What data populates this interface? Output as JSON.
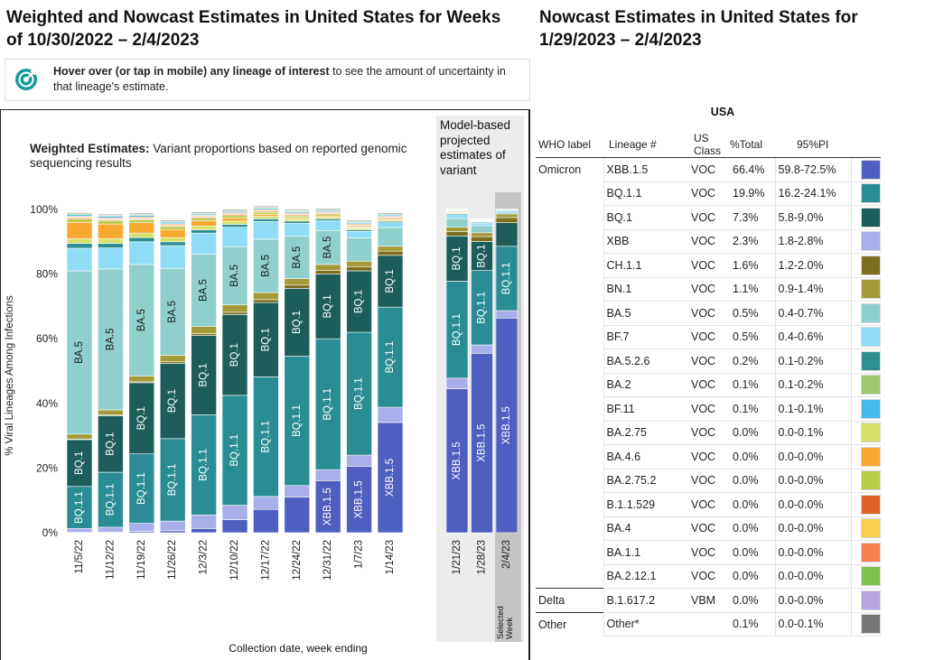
{
  "left_title": "Weighted and Nowcast Estimates in United States for Weeks of 10/30/2022 – 2/4/2023",
  "hint": {
    "bold": "Hover over (or tap in mobile) any lineage of interest",
    "rest": " to see the amount of uncertainty in that lineage's estimate."
  },
  "weighted": {
    "title_bold": "Weighted Estimates:",
    "title_rest": " Variant proportions based on reported genomic sequencing results"
  },
  "projected_title": "Model-based projected estimates of variant",
  "selected_week_label": "Selected Week",
  "colors": {
    "XBB.1.5": "#4f5fbf",
    "XBB": "#a8aee8",
    "BQ.1.1": "#2a8d96",
    "BQ.1": "#1d5e5a",
    "CH.1.1": "#7a6f1f",
    "BN.1": "#a39a39",
    "BA.5": "#8fd0cc",
    "BF.7": "#8fdcf7",
    "BA.5.2.6": "#2d8f92",
    "BA.2": "#9bc96b",
    "BF.11": "#45b8ee",
    "BA.2.75": "#d6e06a",
    "BA.4.6": "#f8a830",
    "BA.2.75.2": "#b8cc4a",
    "B.1.1.529": "#e0622a",
    "BA.4": "#f7d050",
    "BA.1.1": "#f87e50",
    "BA.2.12.1": "#7fbf4b",
    "B.1.617.2": "#b7a4e0",
    "Other": "#777777"
  },
  "chart_data": {
    "type": "bar",
    "stacked": true,
    "title": "Weighted Estimates",
    "xlabel": "Collection date, week ending",
    "ylabel": "% Viral Lineages Among Infections",
    "ylim": [
      0,
      100
    ],
    "yticks": [
      "0%",
      "20%",
      "40%",
      "60%",
      "80%",
      "100%"
    ],
    "categories": [
      "11/5/22",
      "11/12/22",
      "11/19/22",
      "11/26/22",
      "12/3/22",
      "12/10/22",
      "12/17/22",
      "12/24/22",
      "12/31/22",
      "1/7/23",
      "1/14/23"
    ],
    "projected_categories": [
      "1/21/23",
      "1/28/23",
      "2/4/23"
    ],
    "series_order": [
      "XBB.1.5",
      "XBB",
      "BQ.1.1",
      "BQ.1",
      "CH.1.1",
      "BN.1",
      "BA.5",
      "BF.7",
      "BA.5.2.6",
      "BA.2.75",
      "BA.4.6",
      "BA.2.75.2",
      "B.1.1.529",
      "BA.4",
      "BA.1.1",
      "BF.11",
      "BA.2",
      "Other"
    ],
    "series": [
      {
        "name": "XBB.1.5",
        "values": [
          0.1,
          0.2,
          0.4,
          0.6,
          1.3,
          4.0,
          7.2,
          11.0,
          16.1,
          20.5,
          34.1
        ],
        "projected": [
          44.5,
          55.5,
          66.4
        ]
      },
      {
        "name": "XBB",
        "values": [
          1.2,
          1.5,
          2.5,
          3.0,
          4.2,
          4.5,
          4.0,
          3.6,
          3.4,
          3.5,
          4.7
        ],
        "projected": [
          3.3,
          2.6,
          2.3
        ]
      },
      {
        "name": "BQ.1.1",
        "values": [
          13.0,
          17.0,
          21.5,
          25.5,
          31.0,
          34.0,
          37.0,
          40.0,
          40.5,
          38.0,
          31.0
        ],
        "projected": [
          30.0,
          23.0,
          19.9
        ]
      },
      {
        "name": "BQ.1",
        "values": [
          14.5,
          17.5,
          22.0,
          23.3,
          24.5,
          25.0,
          23.0,
          21.0,
          20.0,
          19.0,
          16.0
        ],
        "projected": [
          14.0,
          9.0,
          7.3
        ]
      },
      {
        "name": "CH.1.1",
        "values": [
          0.2,
          0.2,
          0.3,
          0.5,
          0.6,
          0.7,
          0.9,
          1.0,
          1.1,
          1.2,
          1.3
        ],
        "projected": [
          1.4,
          1.5,
          1.6
        ]
      },
      {
        "name": "BN.1",
        "values": [
          1.5,
          1.6,
          1.8,
          2.0,
          2.2,
          2.3,
          2.2,
          2.0,
          1.9,
          1.8,
          1.5
        ],
        "projected": [
          1.3,
          1.2,
          1.1
        ]
      },
      {
        "name": "BA.5",
        "values": [
          50.5,
          43.6,
          34.5,
          26.9,
          22.4,
          18.0,
          16.5,
          13.1,
          10.5,
          7.2,
          5.8
        ],
        "projected": [
          2.7,
          2.2,
          0.5
        ]
      },
      {
        "name": "BF.7",
        "values": [
          7.0,
          6.5,
          7.0,
          7.0,
          6.5,
          6.0,
          5.5,
          4.0,
          3.0,
          2.0,
          1.5
        ],
        "projected": [
          1.2,
          0.8,
          0.5
        ]
      },
      {
        "name": "BA.5.2.6",
        "values": [
          1.5,
          1.4,
          1.3,
          1.2,
          1.0,
          0.9,
          0.8,
          0.7,
          0.6,
          0.5,
          0.4
        ],
        "projected": [
          0.3,
          0.3,
          0.2
        ]
      },
      {
        "name": "BA.2.75",
        "values": [
          1.5,
          1.5,
          1.4,
          1.3,
          1.2,
          1.0,
          0.8,
          0.7,
          0.6,
          0.5,
          0.4
        ],
        "projected": [
          0.3,
          0.2,
          0.0
        ]
      },
      {
        "name": "BA.4.6",
        "values": [
          5.0,
          4.5,
          3.2,
          2.5,
          1.6,
          1.0,
          0.6,
          0.4,
          0.3,
          0.2,
          0.1
        ],
        "projected": [
          0.1,
          0.1,
          0.0
        ]
      },
      {
        "name": "BA.2.75.2",
        "values": [
          1.0,
          1.0,
          0.9,
          0.9,
          0.8,
          0.7,
          0.6,
          0.5,
          0.4,
          0.3,
          0.2
        ],
        "projected": [
          0.2,
          0.1,
          0.0
        ]
      },
      {
        "name": "B.1.1.529",
        "values": [
          0.3,
          0.3,
          0.3,
          0.3,
          0.3,
          0.3,
          0.3,
          0.3,
          0.3,
          0.3,
          0.3
        ],
        "projected": [
          0.2,
          0.1,
          0.0
        ]
      },
      {
        "name": "BA.4",
        "values": [
          0.3,
          0.3,
          0.3,
          0.3,
          0.3,
          0.3,
          0.3,
          0.3,
          0.3,
          0.3,
          0.3
        ],
        "projected": [
          0.2,
          0.1,
          0.0
        ]
      },
      {
        "name": "BA.1.1",
        "values": [
          0.3,
          0.3,
          0.3,
          0.3,
          0.3,
          0.3,
          0.3,
          0.3,
          0.3,
          0.3,
          0.3
        ],
        "projected": [
          0.2,
          0.1,
          0.0
        ]
      },
      {
        "name": "BF.11",
        "values": [
          0.5,
          0.5,
          0.5,
          0.5,
          0.4,
          0.4,
          0.4,
          0.4,
          0.4,
          0.4,
          0.4
        ],
        "projected": [
          0.1,
          0.1,
          0.1
        ]
      },
      {
        "name": "BA.2",
        "values": [
          0.3,
          0.3,
          0.3,
          0.3,
          0.3,
          0.3,
          0.3,
          0.3,
          0.3,
          0.3,
          0.3
        ],
        "projected": [
          0.1,
          0.1,
          0.1
        ]
      },
      {
        "name": "Other",
        "values": [
          0.3,
          0.3,
          0.3,
          0.3,
          0.3,
          0.3,
          0.3,
          0.3,
          0.3,
          0.3,
          0.3
        ],
        "projected": [
          0.1,
          0.1,
          0.1
        ]
      }
    ],
    "bar_labels": [
      [
        {
          "s": "BQ.1.1",
          "t": "BQ.1.1"
        },
        {
          "s": "BQ.1",
          "t": "BQ.1"
        },
        {
          "s": "BA.5",
          "t": "BA.5"
        }
      ],
      [
        {
          "s": "BQ.1.1",
          "t": "BQ.1.1"
        },
        {
          "s": "BQ.1",
          "t": "BQ.1"
        },
        {
          "s": "BA.5",
          "t": "BA.5"
        }
      ],
      [
        {
          "s": "BQ.1.1",
          "t": "BQ.1.1"
        },
        {
          "s": "BQ.1",
          "t": "BQ.1"
        },
        {
          "s": "BA.5",
          "t": "BA.5"
        }
      ],
      [
        {
          "s": "BQ.1.1",
          "t": "BQ.1.1"
        },
        {
          "s": "BQ.1",
          "t": "BQ.1"
        },
        {
          "s": "BA.5",
          "t": "BA.5"
        }
      ],
      [
        {
          "s": "BQ.1.1",
          "t": "BQ.1.1"
        },
        {
          "s": "BQ.1",
          "t": "BQ.1"
        },
        {
          "s": "BA.5",
          "t": "BA.5"
        }
      ],
      [
        {
          "s": "BQ.1.1",
          "t": "BQ.1.1"
        },
        {
          "s": "BQ.1",
          "t": "BQ.1"
        },
        {
          "s": "BA.5",
          "t": "BA.5"
        }
      ],
      [
        {
          "s": "BQ.1.1",
          "t": "BQ.1.1"
        },
        {
          "s": "BQ.1",
          "t": "BQ.1"
        },
        {
          "s": "BA.5",
          "t": "BA.5"
        }
      ],
      [
        {
          "s": "BQ.1.1",
          "t": "BQ.1.1"
        },
        {
          "s": "BQ.1",
          "t": "BQ.1"
        },
        {
          "s": "BA.5",
          "t": "BA.5"
        }
      ],
      [
        {
          "s": "XBB.1.5",
          "t": "XBB.1.5"
        },
        {
          "s": "BQ.1.1",
          "t": "BQ.1.1"
        },
        {
          "s": "BQ.1",
          "t": "BQ.1"
        },
        {
          "s": "BA.5",
          "t": "BA.5"
        }
      ],
      [
        {
          "s": "XBB.1.5",
          "t": "XBB.1.5"
        },
        {
          "s": "BQ.1.1",
          "t": "BQ.1.1"
        },
        {
          "s": "BQ.1",
          "t": "BQ.1"
        }
      ],
      [
        {
          "s": "XBB.1.5",
          "t": "XBB.1.5"
        },
        {
          "s": "BQ.1.1",
          "t": "BQ.1.1"
        },
        {
          "s": "BQ.1",
          "t": "BQ.1"
        }
      ]
    ],
    "projected_labels": [
      [
        {
          "s": "XBB.1.5",
          "t": "XBB.1.5"
        },
        {
          "s": "BQ.1.1",
          "t": "BQ.1.1"
        },
        {
          "s": "BQ.1",
          "t": "BQ.1"
        }
      ],
      [
        {
          "s": "XBB.1.5",
          "t": "XBB.1.5"
        },
        {
          "s": "BQ.1.1",
          "t": "BQ.1.1"
        },
        {
          "s": "BQ.1",
          "t": "BQ.1"
        }
      ],
      [
        {
          "s": "XBB.1.5",
          "t": "XBB.1.5"
        },
        {
          "s": "BQ.1.1",
          "t": "BQ.1.1"
        }
      ]
    ]
  },
  "right_title": "Nowcast Estimates in United States for 1/29/2023 – 2/4/2023",
  "region": "USA",
  "table": {
    "headers": [
      "WHO label",
      "Lineage #",
      "US Class",
      "%Total",
      "95%PI"
    ],
    "rows": [
      {
        "who": "Omicron",
        "lineage": "XBB.1.5",
        "cls": "VOC",
        "total": "66.4%",
        "pi": "59.8-72.5%"
      },
      {
        "who": "",
        "lineage": "BQ.1.1",
        "cls": "VOC",
        "total": "19.9%",
        "pi": "16.2-24.1%"
      },
      {
        "who": "",
        "lineage": "BQ.1",
        "cls": "VOC",
        "total": "7.3%",
        "pi": "5.8-9.0%"
      },
      {
        "who": "",
        "lineage": "XBB",
        "cls": "VOC",
        "total": "2.3%",
        "pi": "1.8-2.8%"
      },
      {
        "who": "",
        "lineage": "CH.1.1",
        "cls": "VOC",
        "total": "1.6%",
        "pi": "1.2-2.0%"
      },
      {
        "who": "",
        "lineage": "BN.1",
        "cls": "VOC",
        "total": "1.1%",
        "pi": "0.9-1.4%"
      },
      {
        "who": "",
        "lineage": "BA.5",
        "cls": "VOC",
        "total": "0.5%",
        "pi": "0.4-0.7%"
      },
      {
        "who": "",
        "lineage": "BF.7",
        "cls": "VOC",
        "total": "0.5%",
        "pi": "0.4-0.6%"
      },
      {
        "who": "",
        "lineage": "BA.5.2.6",
        "cls": "VOC",
        "total": "0.2%",
        "pi": "0.1-0.2%"
      },
      {
        "who": "",
        "lineage": "BA.2",
        "cls": "VOC",
        "total": "0.1%",
        "pi": "0.1-0.2%"
      },
      {
        "who": "",
        "lineage": "BF.11",
        "cls": "VOC",
        "total": "0.1%",
        "pi": "0.1-0.1%"
      },
      {
        "who": "",
        "lineage": "BA.2.75",
        "cls": "VOC",
        "total": "0.0%",
        "pi": "0.0-0.1%"
      },
      {
        "who": "",
        "lineage": "BA.4.6",
        "cls": "VOC",
        "total": "0.0%",
        "pi": "0.0-0.0%"
      },
      {
        "who": "",
        "lineage": "BA.2.75.2",
        "cls": "VOC",
        "total": "0.0%",
        "pi": "0.0-0.0%"
      },
      {
        "who": "",
        "lineage": "B.1.1.529",
        "cls": "VOC",
        "total": "0.0%",
        "pi": "0.0-0.0%"
      },
      {
        "who": "",
        "lineage": "BA.4",
        "cls": "VOC",
        "total": "0.0%",
        "pi": "0.0-0.0%"
      },
      {
        "who": "",
        "lineage": "BA.1.1",
        "cls": "VOC",
        "total": "0.0%",
        "pi": "0.0-0.0%"
      },
      {
        "who": "",
        "lineage": "BA.2.12.1",
        "cls": "VOC",
        "total": "0.0%",
        "pi": "0.0-0.0%"
      },
      {
        "who": "Delta",
        "lineage": "B.1.617.2",
        "cls": "VBM",
        "total": "0.0%",
        "pi": "0.0-0.0%"
      },
      {
        "who": "Other",
        "lineage": "Other*",
        "cls": "",
        "total": "0.1%",
        "pi": "0.0-0.1%"
      }
    ]
  }
}
